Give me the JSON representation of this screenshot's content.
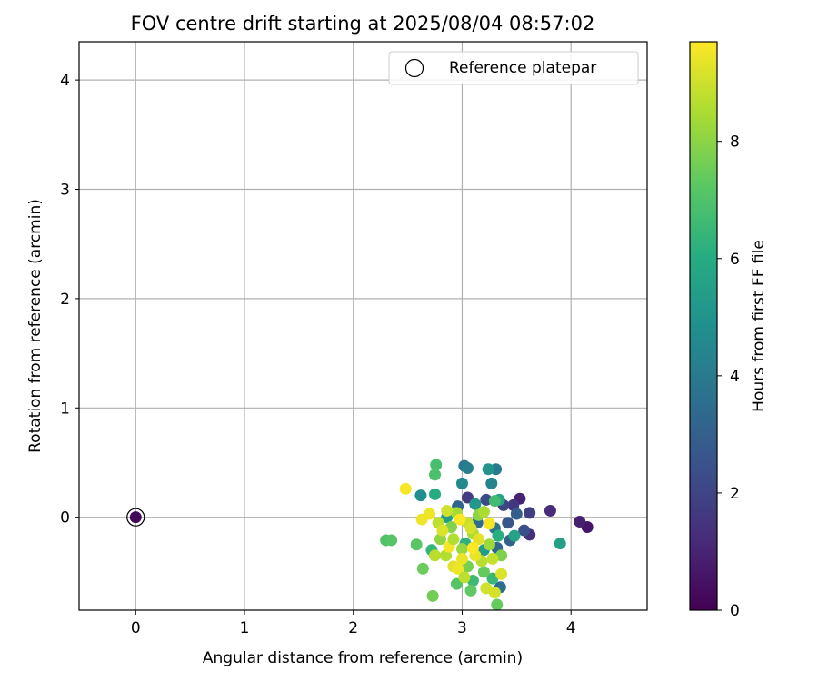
{
  "chart_data": {
    "type": "scatter",
    "title": "FOV centre drift starting at 2025/08/04 08:57:02",
    "xlabel": "Angular distance from reference (arcmin)",
    "ylabel": "Rotation from reference (arcmin)",
    "xlim": [
      -0.52,
      4.7
    ],
    "ylim": [
      -0.85,
      4.35
    ],
    "xticks": [
      0,
      1,
      2,
      3,
      4
    ],
    "yticks": [
      0,
      1,
      2,
      3,
      4
    ],
    "grid": true,
    "legend": {
      "placement": "upper-right",
      "entries": [
        "Reference platepar"
      ]
    },
    "colorbar": {
      "label": "Hours from first FF file",
      "range": [
        0,
        9.7
      ],
      "ticks": [
        0,
        2,
        4,
        6,
        8
      ],
      "colormap": "viridis"
    },
    "reference_point": {
      "x": 0,
      "y": 0,
      "hours": 0.2
    },
    "points": [
      {
        "x": 4.15,
        "y": -0.09,
        "h": 0.6
      },
      {
        "x": 4.08,
        "y": -0.04,
        "h": 0.9
      },
      {
        "x": 3.81,
        "y": 0.06,
        "h": 1.2
      },
      {
        "x": 3.53,
        "y": 0.17,
        "h": 1.0
      },
      {
        "x": 3.62,
        "y": -0.16,
        "h": 1.3
      },
      {
        "x": 3.47,
        "y": 0.11,
        "h": 1.6
      },
      {
        "x": 3.62,
        "y": 0.04,
        "h": 1.8
      },
      {
        "x": 3.38,
        "y": 0.11,
        "h": 2.0
      },
      {
        "x": 3.57,
        "y": -0.12,
        "h": 2.4
      },
      {
        "x": 3.05,
        "y": 0.18,
        "h": 1.7
      },
      {
        "x": 3.22,
        "y": 0.16,
        "h": 2.2
      },
      {
        "x": 3.42,
        "y": -0.05,
        "h": 2.6
      },
      {
        "x": 3.5,
        "y": 0.03,
        "h": 2.9
      },
      {
        "x": 3.44,
        "y": -0.21,
        "h": 3.1
      },
      {
        "x": 3.32,
        "y": -0.28,
        "h": 3.3
      },
      {
        "x": 3.35,
        "y": -0.64,
        "h": 3.6
      },
      {
        "x": 2.96,
        "y": 0.1,
        "h": 3.2
      },
      {
        "x": 3.14,
        "y": -0.05,
        "h": 3.5
      },
      {
        "x": 3.3,
        "y": -0.1,
        "h": 3.8
      },
      {
        "x": 3.02,
        "y": 0.47,
        "h": 3.9
      },
      {
        "x": 3.05,
        "y": 0.45,
        "h": 4.2
      },
      {
        "x": 3.31,
        "y": 0.44,
        "h": 4.0
      },
      {
        "x": 3.27,
        "y": 0.31,
        "h": 4.4
      },
      {
        "x": 3.0,
        "y": 0.31,
        "h": 4.6
      },
      {
        "x": 2.62,
        "y": 0.2,
        "h": 4.8
      },
      {
        "x": 3.24,
        "y": 0.44,
        "h": 5.0
      },
      {
        "x": 3.12,
        "y": 0.12,
        "h": 5.2
      },
      {
        "x": 2.86,
        "y": 0.0,
        "h": 5.4
      },
      {
        "x": 3.2,
        "y": -0.3,
        "h": 5.3
      },
      {
        "x": 3.9,
        "y": -0.24,
        "h": 5.5
      },
      {
        "x": 3.48,
        "y": -0.17,
        "h": 5.6
      },
      {
        "x": 3.34,
        "y": 0.16,
        "h": 5.7
      },
      {
        "x": 2.75,
        "y": 0.21,
        "h": 6.0
      },
      {
        "x": 3.03,
        "y": -0.24,
        "h": 6.2
      },
      {
        "x": 2.72,
        "y": -0.3,
        "h": 6.4
      },
      {
        "x": 3.28,
        "y": -0.56,
        "h": 6.5
      },
      {
        "x": 3.1,
        "y": -0.58,
        "h": 6.6
      },
      {
        "x": 3.33,
        "y": -0.17,
        "h": 6.1
      },
      {
        "x": 2.76,
        "y": 0.48,
        "h": 6.8
      },
      {
        "x": 2.75,
        "y": 0.39,
        "h": 6.9
      },
      {
        "x": 3.3,
        "y": 0.15,
        "h": 6.7
      },
      {
        "x": 2.3,
        "y": -0.21,
        "h": 7.0
      },
      {
        "x": 2.35,
        "y": -0.21,
        "h": 7.1
      },
      {
        "x": 2.58,
        "y": -0.25,
        "h": 7.2
      },
      {
        "x": 2.95,
        "y": -0.61,
        "h": 7.1
      },
      {
        "x": 3.08,
        "y": -0.67,
        "h": 7.3
      },
      {
        "x": 3.32,
        "y": -0.8,
        "h": 7.4
      },
      {
        "x": 2.64,
        "y": -0.47,
        "h": 7.5
      },
      {
        "x": 2.73,
        "y": -0.72,
        "h": 7.6
      },
      {
        "x": 3.2,
        "y": -0.5,
        "h": 7.4
      },
      {
        "x": 3.05,
        "y": -0.45,
        "h": 7.7
      },
      {
        "x": 3.36,
        "y": -0.35,
        "h": 7.8
      },
      {
        "x": 2.9,
        "y": -0.09,
        "h": 7.9
      },
      {
        "x": 3.15,
        "y": 0.02,
        "h": 8.0
      },
      {
        "x": 2.8,
        "y": -0.2,
        "h": 8.1
      },
      {
        "x": 3.0,
        "y": -0.29,
        "h": 8.2
      },
      {
        "x": 3.25,
        "y": -0.25,
        "h": 8.3
      },
      {
        "x": 2.95,
        "y": 0.04,
        "h": 8.4
      },
      {
        "x": 3.1,
        "y": -0.15,
        "h": 8.5
      },
      {
        "x": 2.85,
        "y": -0.35,
        "h": 8.6
      },
      {
        "x": 3.18,
        "y": -0.4,
        "h": 8.7
      },
      {
        "x": 2.78,
        "y": -0.05,
        "h": 8.8
      },
      {
        "x": 3.05,
        "y": -0.05,
        "h": 8.9
      },
      {
        "x": 3.22,
        "y": -0.65,
        "h": 9.0
      },
      {
        "x": 3.3,
        "y": -0.69,
        "h": 9.1
      },
      {
        "x": 3.36,
        "y": -0.52,
        "h": 9.2
      },
      {
        "x": 2.92,
        "y": -0.45,
        "h": 9.3
      },
      {
        "x": 3.12,
        "y": -0.35,
        "h": 9.4
      },
      {
        "x": 2.7,
        "y": 0.03,
        "h": 9.5
      },
      {
        "x": 2.48,
        "y": 0.26,
        "h": 9.6
      },
      {
        "x": 2.63,
        "y": -0.02,
        "h": 9.5
      },
      {
        "x": 2.88,
        "y": -0.27,
        "h": 9.6
      },
      {
        "x": 3.0,
        "y": -0.38,
        "h": 9.4
      },
      {
        "x": 3.15,
        "y": -0.2,
        "h": 9.3
      },
      {
        "x": 2.82,
        "y": -0.12,
        "h": 9.2
      },
      {
        "x": 3.25,
        "y": -0.06,
        "h": 9.6
      },
      {
        "x": 2.96,
        "y": -0.47,
        "h": 9.5
      },
      {
        "x": 3.08,
        "y": -0.1,
        "h": 9.1
      },
      {
        "x": 2.86,
        "y": 0.06,
        "h": 9.0
      },
      {
        "x": 3.28,
        "y": -0.38,
        "h": 8.9
      },
      {
        "x": 3.02,
        "y": -0.55,
        "h": 8.8
      },
      {
        "x": 2.75,
        "y": -0.35,
        "h": 8.7
      },
      {
        "x": 2.92,
        "y": -0.2,
        "h": 8.6
      },
      {
        "x": 3.2,
        "y": 0.05,
        "h": 8.5
      },
      {
        "x": 3.1,
        "y": -0.28,
        "h": 9.7
      },
      {
        "x": 2.98,
        "y": -0.02,
        "h": 9.7
      }
    ]
  }
}
